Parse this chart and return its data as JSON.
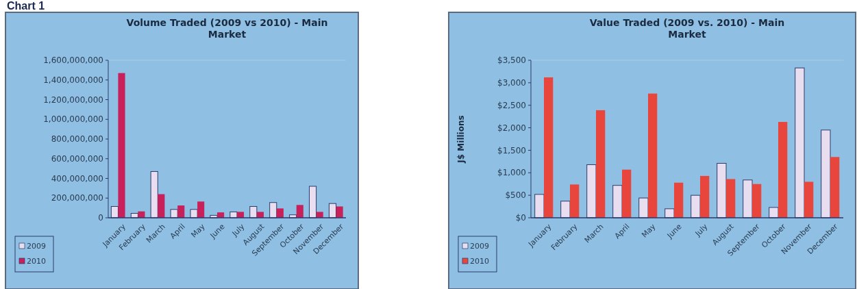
{
  "chart_data": [
    {
      "type": "bar",
      "title": "Volume Traded (2009 vs 2010) - Main Market",
      "annotations": [
        "Chart 1"
      ],
      "categories": [
        "January",
        "February",
        "March",
        "April",
        "May",
        "June",
        "July",
        "August",
        "September",
        "October",
        "November",
        "December"
      ],
      "series": [
        {
          "name": "2009",
          "color": "#e8def0",
          "values": [
            115000000,
            45000000,
            470000000,
            85000000,
            85000000,
            25000000,
            60000000,
            115000000,
            155000000,
            30000000,
            320000000,
            145000000
          ]
        },
        {
          "name": "2010",
          "color": "#c8205a",
          "values": [
            1470000000,
            65000000,
            240000000,
            125000000,
            165000000,
            55000000,
            60000000,
            60000000,
            95000000,
            130000000,
            60000000,
            115000000
          ]
        }
      ],
      "ylim": [
        0,
        1600000000
      ],
      "yticks": [
        {
          "value": 0,
          "label": "0"
        },
        {
          "value": 200000000,
          "label": "200,000,000"
        },
        {
          "value": 400000000,
          "label": "400,000,000"
        },
        {
          "value": 600000000,
          "label": "600,000,000"
        },
        {
          "value": 800000000,
          "label": "800,000,000"
        },
        {
          "value": 1000000000,
          "label": "1,000,000,000"
        },
        {
          "value": 1200000000,
          "label": "1,200,000,000"
        },
        {
          "value": 1400000000,
          "label": "1,400,000,000"
        },
        {
          "value": 1600000000,
          "label": "1,600,000,000"
        }
      ],
      "grid": false,
      "legend": "bottom left"
    },
    {
      "type": "bar",
      "title": "Value Traded (2009 vs. 2010) - Main Market",
      "ylabel": "J$ Millions",
      "categories": [
        "January",
        "February",
        "March",
        "April",
        "May",
        "June",
        "July",
        "August",
        "September",
        "October",
        "November",
        "December"
      ],
      "series": [
        {
          "name": "2009",
          "color": "#e8def0",
          "values": [
            520,
            370,
            1180,
            720,
            440,
            200,
            500,
            1210,
            840,
            230,
            3330,
            1950
          ]
        },
        {
          "name": "2010",
          "color": "#e8463c",
          "values": [
            3120,
            740,
            2390,
            1070,
            2760,
            780,
            930,
            860,
            750,
            2130,
            800,
            1350
          ]
        }
      ],
      "ylim": [
        0,
        3500
      ],
      "yticks": [
        {
          "value": 0,
          "label": "$0"
        },
        {
          "value": 500,
          "label": "$500"
        },
        {
          "value": 1000,
          "label": "$1,000"
        },
        {
          "value": 1500,
          "label": "$1,500"
        },
        {
          "value": 2000,
          "label": "$2,000"
        },
        {
          "value": 2500,
          "label": "$2,500"
        },
        {
          "value": 3000,
          "label": "$3,000"
        },
        {
          "value": 3500,
          "label": "$3,500"
        }
      ],
      "grid": false,
      "legend": "bottom left"
    }
  ]
}
